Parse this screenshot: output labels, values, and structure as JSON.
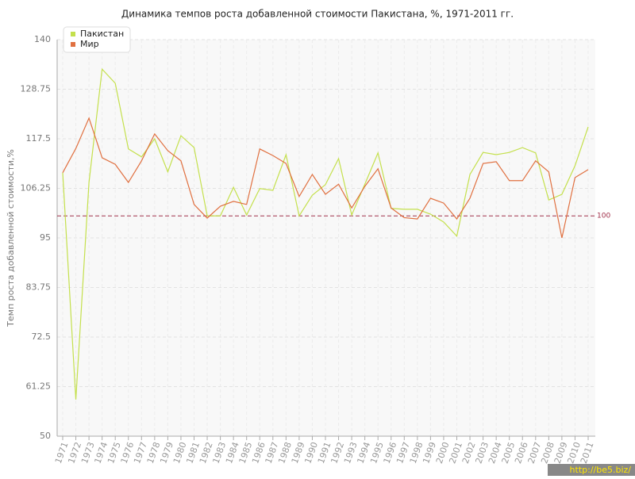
{
  "chart_data": {
    "type": "line",
    "title": "Динамика темпов роста добавленной стоимости Пакистана, %, 1971-2011 гг.",
    "y_label": "Темп роста добавленной стоимости,%",
    "categories": [
      "1971",
      "1972",
      "1973",
      "1974",
      "1975",
      "1976",
      "1977",
      "1978",
      "1979",
      "1980",
      "1981",
      "1982",
      "1983",
      "1984",
      "1985",
      "1986",
      "1987",
      "1988",
      "1989",
      "1990",
      "1991",
      "1992",
      "1993",
      "1994",
      "1995",
      "1996",
      "1997",
      "1998",
      "1999",
      "2000",
      "2001",
      "2002",
      "2003",
      "2004",
      "2005",
      "2006",
      "2007",
      "2008",
      "2009",
      "2010",
      "2011"
    ],
    "series": [
      {
        "name": "Пакистан",
        "color": "#c4e04c",
        "values": [
          109.8,
          58.3,
          107.6,
          133.3,
          130.1,
          115.2,
          113.4,
          117.5,
          110,
          118.2,
          115.5,
          100,
          100,
          106.5,
          100.2,
          106.2,
          105.8,
          113.9,
          100,
          104.7,
          107.1,
          113,
          100.2,
          107.2,
          114.3,
          101.7,
          101.5,
          101.5,
          100.4,
          98.6,
          95.4,
          109.4,
          114.4,
          113.9,
          114.4,
          115.5,
          114.3,
          103.6,
          104.9,
          111.4,
          120.2
        ]
      },
      {
        "name": "Мир",
        "color": "#e07040",
        "values": [
          109.8,
          115.3,
          122.2,
          113.2,
          111.7,
          107.6,
          112.5,
          118.6,
          114.8,
          112.5,
          102.6,
          99.5,
          102.2,
          103.3,
          102.6,
          115.2,
          113.7,
          111.9,
          104.4,
          109.4,
          104.9,
          107.2,
          101.8,
          106.7,
          110.7,
          101.8,
          99.6,
          99.3,
          104,
          102.9,
          99.3,
          104,
          111.9,
          112.3,
          108,
          108,
          112.5,
          110,
          95,
          108.7,
          110.5
        ]
      }
    ],
    "ylim": [
      50,
      140
    ],
    "yticks": [
      50,
      61.25,
      72.5,
      83.75,
      95,
      106.25,
      117.5,
      128.75,
      140
    ],
    "reference_line": 100,
    "grid": true,
    "legend": "top-left",
    "watermark": "http://be5.biz/"
  }
}
